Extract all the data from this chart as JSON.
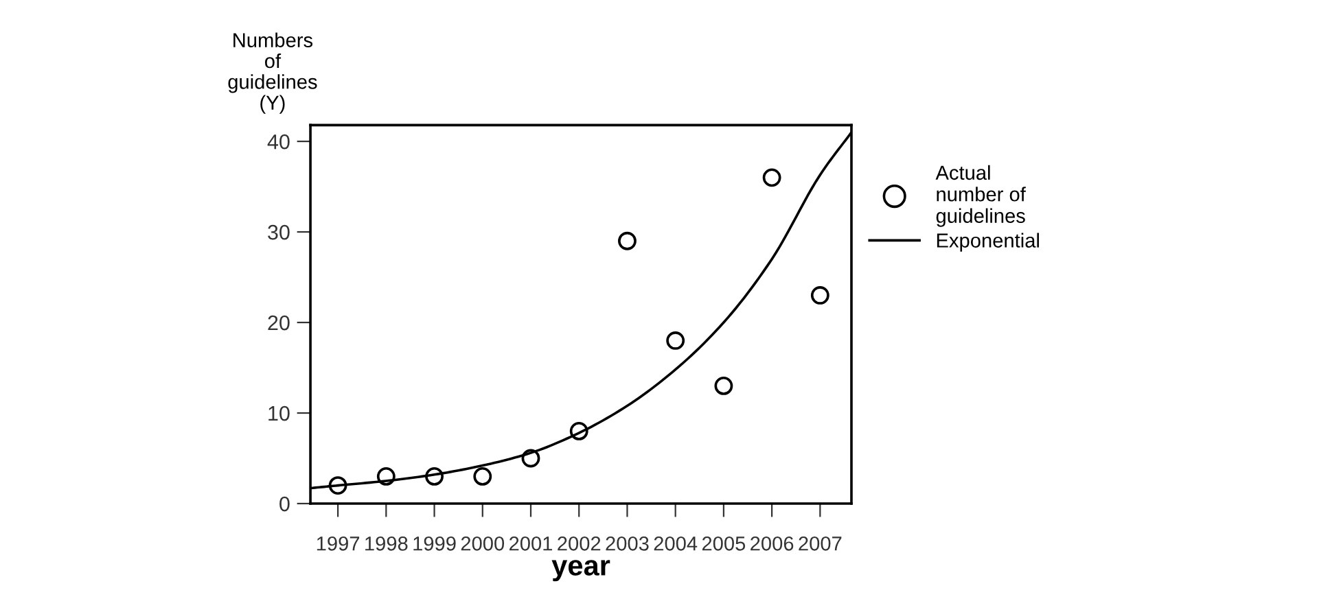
{
  "chart_data": {
    "type": "scatter",
    "xlabel": "year",
    "ylabel": "Numbers\nof\nguidelines\n(Y)",
    "series": [
      {
        "name": "Actual number of guidelines",
        "color": "#000000",
        "marker": "circle",
        "x": [
          1997,
          1998,
          1999,
          2000,
          2001,
          2002,
          2003,
          2004,
          2005,
          2006,
          2007
        ],
        "values": [
          2,
          3,
          3,
          3,
          5,
          8,
          29,
          18,
          13,
          36,
          23
        ]
      },
      {
        "name": "Exponential",
        "type": "line",
        "color": "#000000",
        "line_style": "solid",
        "x": [
          1996.43,
          1997,
          1998,
          1999,
          2000,
          2001,
          2002,
          2003,
          2004,
          2005,
          2006,
          2007,
          2007.65
        ],
        "values": [
          1.7,
          2.0,
          2.5,
          3.2,
          4.2,
          5.6,
          7.8,
          10.8,
          14.8,
          20,
          27,
          36.3,
          41
        ]
      }
    ],
    "xlim": [
      1996.43,
      2007.65
    ],
    "xticks": [
      1997,
      1998,
      1999,
      2000,
      2001,
      2002,
      2003,
      2004,
      2005,
      2006,
      2007
    ],
    "ylim": [
      0,
      41.8
    ],
    "yticks": [
      0,
      10,
      20,
      30,
      40
    ],
    "grid": false,
    "legend": "right"
  }
}
